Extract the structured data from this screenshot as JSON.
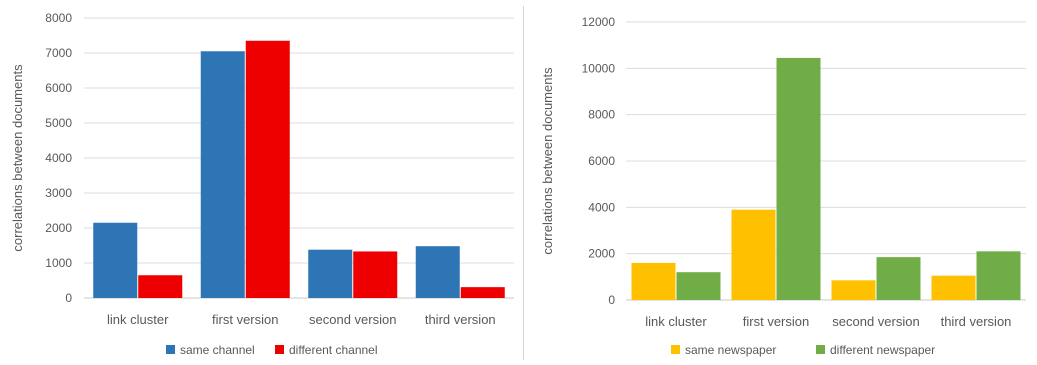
{
  "chart_data": [
    {
      "type": "bar",
      "categories": [
        "link cluster",
        "first version",
        "second version",
        "third version"
      ],
      "series": [
        {
          "name": "same channel",
          "color": "#2E75B6",
          "values": [
            2150,
            7050,
            1380,
            1480
          ]
        },
        {
          "name": "different channel",
          "color": "#EE0000",
          "values": [
            650,
            7350,
            1330,
            310
          ]
        }
      ],
      "ylabel": "correlations between documents",
      "xlabel": "",
      "ylim": [
        0,
        8000
      ],
      "yticks": [
        0,
        1000,
        2000,
        3000,
        4000,
        5000,
        6000,
        7000,
        8000
      ],
      "grid": true,
      "legend_position": "bottom"
    },
    {
      "type": "bar",
      "categories": [
        "link cluster",
        "first version",
        "second version",
        "third version"
      ],
      "series": [
        {
          "name": "same newspaper",
          "color": "#FFC000",
          "values": [
            1600,
            3900,
            850,
            1050
          ]
        },
        {
          "name": "different newspaper",
          "color": "#70AD47",
          "values": [
            1200,
            10450,
            1850,
            2100
          ]
        }
      ],
      "ylabel": "correlations between documents",
      "xlabel": "",
      "ylim": [
        0,
        12000
      ],
      "yticks": [
        0,
        2000,
        4000,
        6000,
        8000,
        10000,
        12000
      ],
      "grid": true,
      "legend_position": "bottom"
    }
  ]
}
